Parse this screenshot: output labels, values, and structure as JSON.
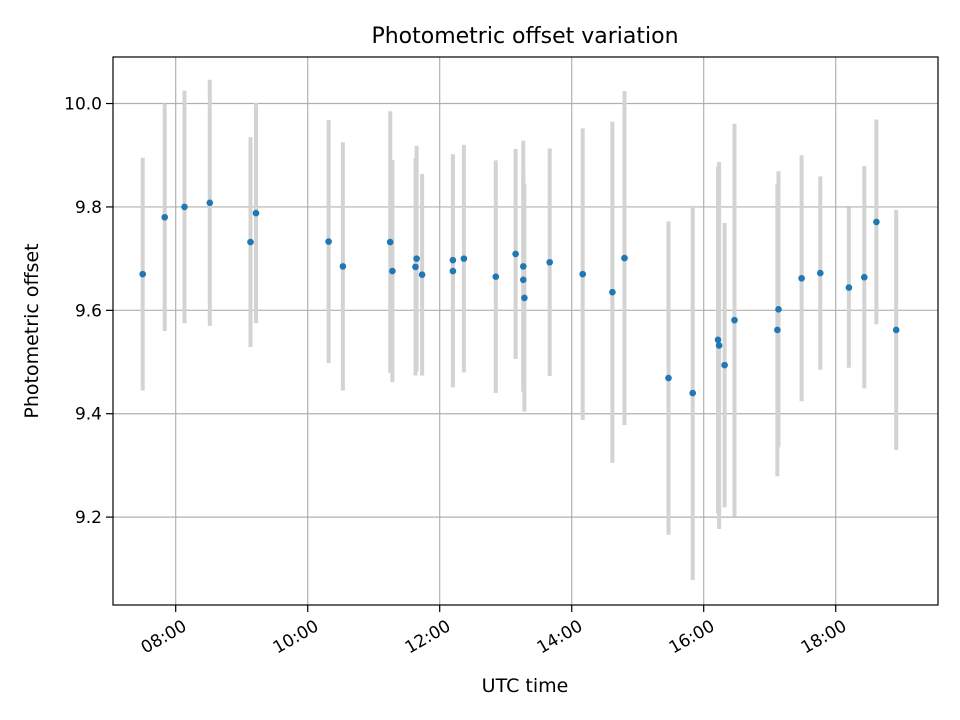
{
  "chart_data": {
    "type": "scatter",
    "title": "Photometric offset variation",
    "xlabel": "UTC time",
    "ylabel": "Photometric offset",
    "x_is_time": true,
    "xlim": [
      "07:03",
      "19:33"
    ],
    "ylim": [
      9.03,
      10.09
    ],
    "xticks": [
      "08:00",
      "10:00",
      "12:00",
      "14:00",
      "16:00",
      "18:00"
    ],
    "yticks": [
      "9.2",
      "9.4",
      "9.6",
      "9.8",
      "10.0"
    ],
    "grid": true,
    "colors": {
      "point": "#1f77b4",
      "errorbar": "#d3d3d3",
      "grid": "#b0b0b0"
    },
    "points": [
      {
        "x": "07:30",
        "y": 9.67,
        "yerr": 0.225
      },
      {
        "x": "07:50",
        "y": 9.78,
        "yerr": 0.22
      },
      {
        "x": "08:08",
        "y": 9.8,
        "yerr": 0.225
      },
      {
        "x": "08:31",
        "y": 9.808,
        "yerr": 0.238
      },
      {
        "x": "09:08",
        "y": 9.732,
        "yerr": 0.203
      },
      {
        "x": "09:13",
        "y": 9.788,
        "yerr": 0.213
      },
      {
        "x": "10:19",
        "y": 9.733,
        "yerr": 0.235
      },
      {
        "x": "10:32",
        "y": 9.685,
        "yerr": 0.24
      },
      {
        "x": "11:15",
        "y": 9.732,
        "yerr": 0.253
      },
      {
        "x": "11:17",
        "y": 9.676,
        "yerr": 0.215
      },
      {
        "x": "11:38",
        "y": 9.684,
        "yerr": 0.21
      },
      {
        "x": "11:39",
        "y": 9.7,
        "yerr": 0.218
      },
      {
        "x": "11:44",
        "y": 9.669,
        "yerr": 0.195
      },
      {
        "x": "12:12",
        "y": 9.697,
        "yerr": 0.205
      },
      {
        "x": "12:12",
        "y": 9.676,
        "yerr": 0.225
      },
      {
        "x": "12:22",
        "y": 9.7,
        "yerr": 0.22
      },
      {
        "x": "12:51",
        "y": 9.665,
        "yerr": 0.225
      },
      {
        "x": "13:09",
        "y": 9.709,
        "yerr": 0.203
      },
      {
        "x": "13:16",
        "y": 9.685,
        "yerr": 0.243
      },
      {
        "x": "13:16",
        "y": 9.659,
        "yerr": 0.212
      },
      {
        "x": "13:17",
        "y": 9.624,
        "yerr": 0.22
      },
      {
        "x": "13:40",
        "y": 9.693,
        "yerr": 0.22
      },
      {
        "x": "14:10",
        "y": 9.67,
        "yerr": 0.282
      },
      {
        "x": "14:37",
        "y": 9.635,
        "yerr": 0.33
      },
      {
        "x": "14:48",
        "y": 9.701,
        "yerr": 0.323
      },
      {
        "x": "15:28",
        "y": 9.469,
        "yerr": 0.303
      },
      {
        "x": "15:50",
        "y": 9.44,
        "yerr": 0.362
      },
      {
        "x": "16:13",
        "y": 9.543,
        "yerr": 0.335
      },
      {
        "x": "16:14",
        "y": 9.532,
        "yerr": 0.355
      },
      {
        "x": "16:19",
        "y": 9.494,
        "yerr": 0.275
      },
      {
        "x": "16:28",
        "y": 9.581,
        "yerr": 0.38
      },
      {
        "x": "17:07",
        "y": 9.562,
        "yerr": 0.283
      },
      {
        "x": "17:08",
        "y": 9.602,
        "yerr": 0.267
      },
      {
        "x": "17:29",
        "y": 9.662,
        "yerr": 0.238
      },
      {
        "x": "17:46",
        "y": 9.672,
        "yerr": 0.187
      },
      {
        "x": "18:12",
        "y": 9.644,
        "yerr": 0.155
      },
      {
        "x": "18:26",
        "y": 9.664,
        "yerr": 0.215
      },
      {
        "x": "18:37",
        "y": 9.771,
        "yerr": 0.198
      },
      {
        "x": "18:55",
        "y": 9.562,
        "yerr": 0.232
      }
    ]
  }
}
